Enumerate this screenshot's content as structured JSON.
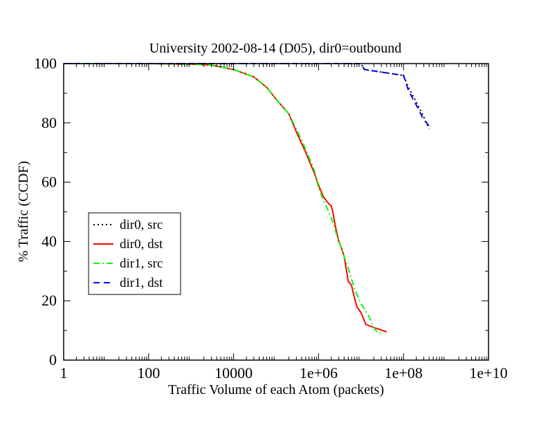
{
  "chart_data": {
    "type": "line",
    "title": "University 2002-08-14 (D05), dir0=outbound",
    "xlabel": "Traffic Volume of each Atom (packets)",
    "ylabel": "% Traffic (CCDF)",
    "xscale": "log",
    "xlim": [
      1,
      10000000000
    ],
    "ylim": [
      0,
      100
    ],
    "xticks": [
      {
        "value": 1,
        "label": "1"
      },
      {
        "value": 100,
        "label": "100"
      },
      {
        "value": 10000,
        "label": "10000"
      },
      {
        "value": 1000000,
        "label": "1e+06"
      },
      {
        "value": 100000000,
        "label": "1e+08"
      },
      {
        "value": 10000000000,
        "label": "1e+10"
      }
    ],
    "yticks": [
      0,
      20,
      40,
      60,
      80,
      100
    ],
    "grid": false,
    "legend_position": "left-middle",
    "series": [
      {
        "name": "dir0, src",
        "color": "#000000",
        "dash": "dotted",
        "x": [
          1,
          100,
          10000,
          1000000,
          10000000,
          12000000,
          100000000,
          130000000,
          200000000,
          300000000,
          400000000
        ],
        "y": [
          100,
          100,
          100,
          100,
          100,
          98,
          96,
          92,
          87,
          82,
          78
        ]
      },
      {
        "name": "dir0, dst",
        "color": "#ff0000",
        "dash": "solid",
        "x": [
          1,
          100,
          1000,
          3000,
          10000,
          30000,
          60000,
          100000,
          200000,
          300000,
          500000,
          800000,
          1000000,
          1300000,
          1800000,
          2000000,
          2200000,
          2500000,
          3000000,
          3500000,
          4000000,
          5000000,
          5500000,
          6000000,
          7000000,
          8000000,
          10000000,
          13000000,
          20000000,
          40000000
        ],
        "y": [
          100,
          100,
          99.8,
          99.5,
          98,
          95.5,
          92,
          88,
          83,
          77,
          70,
          63,
          59,
          55,
          52.5,
          52,
          49.5,
          45,
          40,
          37.5,
          35,
          26.5,
          26,
          25,
          21,
          18,
          16,
          12,
          11,
          9.5
        ]
      },
      {
        "name": "dir1, src",
        "color": "#00ff00",
        "dash": "dashdot",
        "x": [
          1,
          100,
          1000,
          3000,
          10000,
          30000,
          60000,
          100000,
          200000,
          300000,
          500000,
          800000,
          1000000,
          1300000,
          2000000,
          3000000,
          5000000,
          7000000,
          10000000,
          15000000,
          22000000,
          30000000
        ],
        "y": [
          100,
          100,
          99.8,
          99.5,
          98,
          95.5,
          92,
          88,
          83,
          78,
          71,
          64,
          58,
          54,
          48,
          40,
          31,
          24,
          19,
          15,
          10,
          9
        ]
      },
      {
        "name": "dir1, dst",
        "color": "#0000ff",
        "dash": "dashed",
        "x": [
          1,
          100,
          10000,
          1000000,
          10000000,
          12000000,
          100000000,
          130000000,
          200000000,
          300000000,
          400000000
        ],
        "y": [
          100,
          100,
          100,
          100,
          100,
          98,
          96,
          91,
          86,
          81,
          79
        ]
      }
    ]
  }
}
